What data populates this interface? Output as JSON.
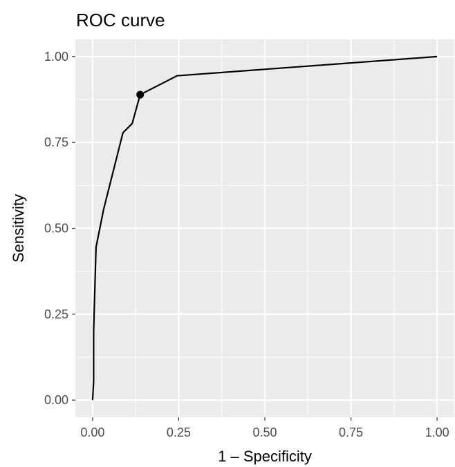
{
  "chart_data": {
    "type": "line",
    "title": "ROC curve",
    "xlabel": "1 – Specificity",
    "ylabel": "Sensitivity",
    "xlim": [
      -0.05,
      1.05
    ],
    "ylim": [
      -0.05,
      1.05
    ],
    "x_ticks": [
      0,
      0.25,
      0.5,
      0.75,
      1
    ],
    "x_tick_labels": [
      "0.00",
      "0.25",
      "0.50",
      "0.75",
      "1.00"
    ],
    "y_ticks": [
      0,
      0.25,
      0.5,
      0.75,
      1
    ],
    "y_tick_labels": [
      "0.00",
      "0.25",
      "0.50",
      "0.75",
      "1.00"
    ],
    "grid": true,
    "panel_background": "#ebebeb",
    "line_color": "#000000",
    "series": [
      {
        "x": [
          0.0,
          0.003,
          0.003,
          0.01,
          0.032,
          0.088,
          0.115,
          0.138,
          0.245,
          1.0
        ],
        "y": [
          0.0,
          0.055,
          0.2,
          0.445,
          0.555,
          0.778,
          0.805,
          0.889,
          0.944,
          1.0
        ]
      }
    ],
    "highlight_point": {
      "x": 0.138,
      "y": 0.889
    }
  }
}
